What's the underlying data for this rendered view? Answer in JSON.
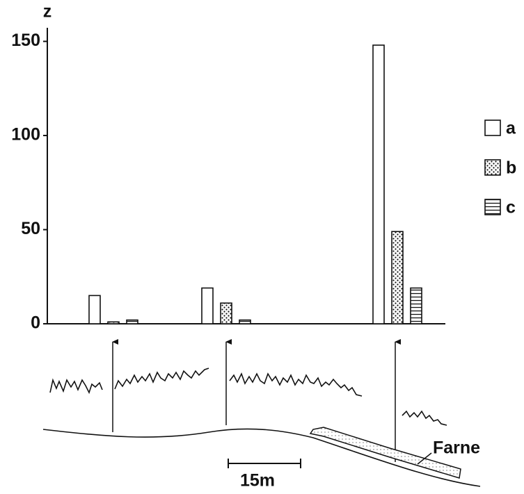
{
  "chart_data": {
    "type": "bar",
    "y_label": "z",
    "categories": [
      null,
      null,
      null
    ],
    "series": [
      {
        "name": "a",
        "color": "#ffffff",
        "pattern": "none",
        "values": [
          15,
          19,
          148
        ]
      },
      {
        "name": "b",
        "color": "#ffffff",
        "pattern": "dots",
        "values": [
          1,
          11,
          49
        ]
      },
      {
        "name": "c",
        "color": "#ffffff",
        "pattern": "hlines",
        "values": [
          2,
          2,
          19
        ]
      }
    ],
    "ylim": [
      0,
      155
    ],
    "yticks": [
      0,
      50,
      100,
      150
    ],
    "legend": "right",
    "annotations": [
      "Farne",
      "15m"
    ]
  }
}
